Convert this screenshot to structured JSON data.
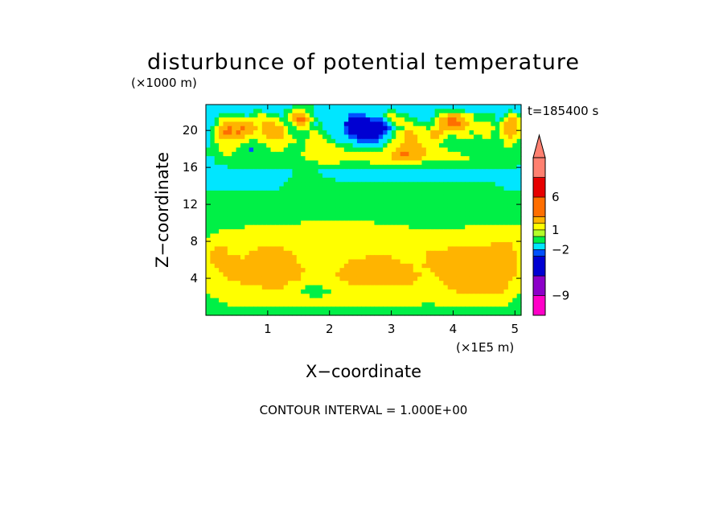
{
  "chart_data": {
    "type": "heatmap",
    "title": "disturbunce of potential temperature",
    "y_multiplier_label": "(×1000 m)",
    "x_multiplier_label": "(×1E5 m)",
    "time_label": "t=185400 s",
    "xlabel": "X−coordinate",
    "ylabel": "Z−coordinate",
    "footer": "CONTOUR INTERVAL = 1.000E+00",
    "xlim": [
      0,
      5.1
    ],
    "ylim": [
      0,
      22.8
    ],
    "x_ticks": [
      1,
      2,
      3,
      4,
      5
    ],
    "x_tick_labels": [
      "1",
      "2",
      "3",
      "4",
      "5"
    ],
    "y_ticks": [
      4,
      8,
      12,
      16,
      20
    ],
    "y_tick_labels": [
      "4",
      "8",
      "12",
      "16",
      "20"
    ],
    "colorbar": {
      "levels": [
        -12,
        -9,
        -6,
        -3,
        -2,
        -1,
        0,
        1,
        2,
        3,
        6,
        9,
        12
      ],
      "colors": [
        "#ff00c8",
        "#8c00c8",
        "#0000d2",
        "#0050ff",
        "#00e6ff",
        "#00f046",
        "#b4ff28",
        "#ffff00",
        "#ffb400",
        "#ff6e00",
        "#e60000",
        "#ff8070"
      ],
      "tick_labels": [
        {
          "value": 6,
          "label": "6"
        },
        {
          "value": 1,
          "label": "1"
        },
        {
          "value": -2,
          "label": "−2"
        },
        {
          "value": -9,
          "label": "−9"
        }
      ],
      "extend": "max"
    },
    "field_rows_top_to_bottom": [
      "TTTTTTTTTTTTTTTTTTTTGGGGGTTTTTTTTTTTTTTTTTTTTTTTTTTTTTTTTTTTTTTTTTTTTTTTT",
      "TTTTTTTTTTTGGTTTTTGGYYYGGTTTTTTTTTTTTTTTTTGGTTTTTTTTTGGGGGGGTTTTTTTTTTGTT",
      "TTTGGGGGGTGGYYGGGTGYOOOYGTTTTTTTTBBBBTTTTGYYGGGTTTTTTGYYOOOYYYGGGGGTTGYYG",
      "TTGYYYYYYYYYYYYYYGGYORROYGTTTTTTTDDDDDBBBTGYYYGGGTTTGYOORROOYYGGGGGTGYOOY",
      "TTGYOOOOOOOYYOOOYYGGYOOYGTGTTTTTDDDDDDDDDBTGYYYYGGGGGYOORRROOYYYYYGGYOOOY",
      "TGYOOROOROOOYOOOOOYGGYYYGGGTTTTTBDDDDDDDDDBTGGYYYYYGYYOOOOOOYYYYYYYGYOOOY",
      "TGYORROROOOYYOOOOOYGGGGGYYGGTTTTBDDDDDDDDBTGYYOOYYYYOOOYYYYYYGYYYYGGYOOOY",
      "TGYOOOOOOYYYYYOOOOYYGGGGYYYGGTTTTBBDDDDDBTTGYYOOOYYYOOYYGGYYYYGGYYGGYYOYY",
      "TGYYYYYYYYGGYYYYYYYYYGGYYYYYGGTTTTTBBBBBTTGYYYOOOYYYYYYGGGGGGGGGGGGGGYYYG",
      "TGGYYYYYGGGGGGYYYYYGGGGYYYYYYYGGGGTTTTTTTGYYYOOOOOYYYYGGGGGGGGGGGGGGGYYGG",
      "GGGYYYYGGGBGGGGYYYGGGGGYYYYYYYYYGGGGGGGGGYYYOOOOOOOYYYYYGGGGGGGGGGGGGGGGG",
      "GGGGYYGGGGGGGGGGGGGGGGYYYYYYYYYYYYYYYYYYYYYOORROOOOYYYYYYYYGGGGGGGGGGGGGG",
      "TTGGGGGGGGGGGGGGGGGGGGGYYYYYYYYYYYYYYYYYYYYOOOOOOOYYYYYYYYYYYGGGGGGGGGGGG",
      "TTGGGGGGGGGGGGGGGGGGGGGGGGYYYYYGGGGGGGYYYYYYYYYYYYGGGGGGGGGGGGGGGGGGGGGGG",
      "TTTTTGGGGGGGGGGGGGGGGGGGGGGGGGGGGGGGGGGGGGGGGGGGGGGGGGGGGGGGGGGGGGGGGGGGT",
      "TTTTTTTTTTTTTTTTTTTTGGGGGGTTTTTTTTTTTTTTTTTTTTTTTTTTTTTTTTTTTTTTTTTTTTTTT",
      "TTTTTTTTTTTTTTTTTTTTGGGGGGGTTTTTTTTTTTTTTTTTTTTTTTTTTTTTTTTTTTTTTTTTTTTTT",
      "TTTTTTTTTTTTTTTTTTTGGGGGGGGGGGTTTTTTTTTTTTTTTTTTTTTTTTTTTTTTTTTTTTTTTTTTT",
      "TTTTTTTTTTTTTTTTTTGGGGGGGGGGGGGGGGGGGGGGGGGGGGGGGGGGGGGGGGGGGGGGGGGTTTTTT",
      "TTTTTTTTTTTTTTTTTGGGGGGGGGGGGGGGGGGGGGGGGGGGGGGGGGGGGGGGGGGGGGGGGGGGGTTTT",
      "GGGGGGGGGGGGGGGGGGGGGGGGGGGGGGGGGGGGGGGGGGGGGGGGGGGGGGGGGGGGGGGGGGGGGGGGG",
      "GGGGGGGGGGGGGGGGGGGGGGGGGGGGGGGGGGGGGGGGGGGGGGGGGGGGGGGGGGGGGGGGGGGGGGGGG",
      "GGGGGGGGGGGGGGGGGGGGGGGGGGGGGGGGGGGGGGGGGGGGGGGGGGGGGGGGGGGGGGGGGGGGGGGGG",
      "GGGGGGGGGGGGGGGGGGGGGGGGGGGGGGGGGGGGGGGGGGGGGGGGGGGGGGGGGGGGGGGGGGGGGGGGG",
      "GGGGGGGGGGGGGGGGGGGGGGGGGGGGGGGGGGGGGGGGGGGGGGGGGGGGGGGGGGGGGGGGGGGGGGGGG",
      "GGGGGGGGGGGGGGGGGGGGGGGGGGGGGGGGGGGGGGGGGGGGGGGGGGGGGGGGGGGGGGGGGGGGGGGGG",
      "GGGGGGGGGGGGGGGGGGGGGGGGGGGGGGGGGGGGGGGGGGGGGGGGGGGGGGGGGGGGGGGGGGGGGGGGG",
      "GGGGGGGGGGGGGGGGGGGGGGYYYYYYYYYYYYYYYYYGGGGGGGGGGGGGGGGGGGGGGGGGGGGGGGGGG",
      "GGGGGGGGGYYYYYYYYYYYYYYYYYYYYYYYYYYYYYYYYYYYYYYGGGGGGGGGGGGGYYYYYYYYYYYYY",
      "GGGYYYYYYYYYYYYYYYYYYYYYYYYYYYYYYYYYYYYYYYYYYYYYYYYYYYYYYYYYYYYYYYYYYYYYY",
      "GYYYYYYYYYYYYYYYYYYYYYYYYYYYYYYYYYYYYYYYYYYYYYYYYYYYYYYYYYYYYYYYYYYYYYYYY",
      "YYYYYYYYYYYYYYYYYYYYYYYYYYYYYYYYYYYYYYYYYYYYYYYYYYYYYYYYYYYYYYYYYYYYYYYYY",
      "YYYYYYYYYYYYYYYYYYYYYYYYYYYYYYYYYYYYYYYYYYYYYYYYYYYYYYYYYYYYYYYYYYOOOOOYY",
      "YYOOOYYYYYYYOOOOOOYYYYYYYYYYYYYYYYYYYYYYYYYYYYYYYYYYYYYYOOOOOOOOOOOOOOOYY",
      "YOOOOYYYYYOOOOOOOOOOYYYYYYYYYYYYYYYYYYYYYYYYYYYYYYYOOOOOOOOOOOOOOOOOOOOOY",
      "YOOOOOOOYOOOOOOOOOOOOYYYYYYYYYYYYYYYYOOOOOOYYYYYYYYOOOOOOOOOOOOOOOOOOOOOY",
      "YOOOOOOOOOOOOOOOOOOOOYYYYYYYYYYYYOOOOOOOOOOOOYYYYYYOOOOOOOOOOOOOOOOOOOOOY",
      "YYOOOOOOOOOOOOOOOOOOOOYYYYYYYYYYOOOOOOOOOOOOOOOOYYOOOOOOOOOOOOOOOOOOOOOOY",
      "YYYOOOOOOOOOOOOOOOOOOOOYYYYYYYYOOOOOOOOOOOOOOOOOYYYYOOOOOOOOOOOOOOOOOOOOY",
      "YYYYOOOOOOOOOOOOOOOOOOYYYYYYYYOOOOOOOOOOOOOOOOOOOOYYYOOOOOOOOOOOOOOOOOOOY",
      "YYYYYOOOOOOOOOOOOOOOOOYYYYYYYYYOOOOOOOOOOOOOOOOOOYYYYYOOOOOOOOOOOOOOOOOYY",
      "YYYYYYYYOOOOOOOOOOOYYYYYYYYYYYYYYOOOOOOOOOOOOOOOYYYYYYYOOOOOOOOOOOOOOOYYY",
      "YYYYYYYYYYYYYOOOOOYYYYYGGGGYYYYYYYYYYYYYYYYYYYYYYYYYYYYYOOOOOOOOOOOOOOYYY",
      "YYYYYYYYYYYYYYYYYYYYYYGGGGGGGYYYYYYYYYYYYYYYYYYYYYYYYYYYYYOOOOOOOOOOOYYYY",
      "GYYYYYYYYYYYYYYYYYYYYYYYGGGYYYYYYYYYYYYYYYYYYYYYYYYYYYYYYYYYYYYYYYYYYYYYG",
      "GGGYYYYYYYYYYYYYYYYYYYYYYYYYYYYYYYYYYYYYYYYYYYYYYYYYYYYYYYYYYYYYYYYYYYYGG",
      "GGGGGYYYYYYYYYYYYYYYYYYYYYYYYYYYYYYYYYYYYYYYYYYYYYGGGYYYYYYYYYYYYYYYYYGGG",
      "GGGGGGGGGGGGGGGGGGGGGGGGGGGGGGGGGGGGGGGGGGGGGGGGGGGGGGGGGGGGGGGGGGGGGGGGG",
      "GGGGGGGGGGGGGGGGGGGGGGGGGGGGGGGGGGGGGGGGGGGGGGGGGGGGGGGGGGGGGGGGGGGGGGGGG"
    ],
    "field_key": {
      "D": {
        "value_range": [
          -6,
          -3
        ],
        "color": "#0000d2"
      },
      "B": {
        "value_range": [
          -3,
          -2
        ],
        "color": "#0050ff"
      },
      "T": {
        "value_range": [
          -2,
          -1
        ],
        "color": "#00e6ff"
      },
      "G": {
        "value_range": [
          -1,
          0
        ],
        "color": "#00f046"
      },
      "Y": {
        "value_range": [
          1,
          2
        ],
        "color": "#ffff00"
      },
      "O": {
        "value_range": [
          2,
          3
        ],
        "color": "#ffb400"
      },
      "R": {
        "value_range": [
          3,
          6
        ],
        "color": "#ff6e00"
      }
    }
  }
}
